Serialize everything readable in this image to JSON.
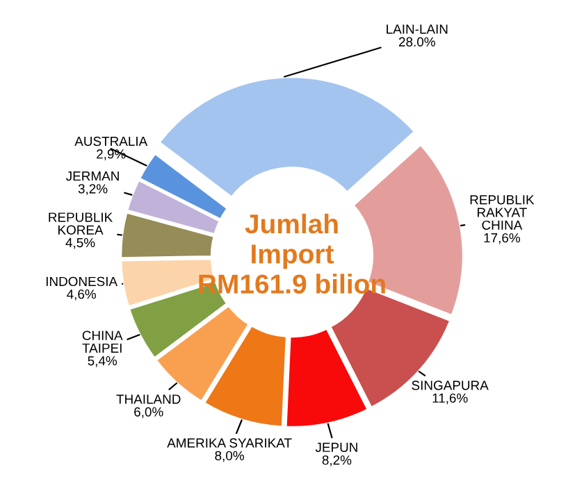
{
  "chart_data": {
    "type": "donut",
    "categories": [
      "LAIN-LAIN",
      "REPUBLIK\nRAKYAT\nCHINA",
      "SINGAPURA",
      "JEPUN",
      "AMERIKA SYARIKAT",
      "THAILAND",
      "CHINA\nTAIPEI",
      "INDONESIA",
      "REPUBLIK\nKOREA",
      "JERMAN",
      "AUSTRALIA"
    ],
    "values": [
      28.0,
      17.6,
      11.6,
      8.2,
      8.0,
      6.0,
      5.4,
      4.6,
      4.5,
      3.2,
      2.9
    ],
    "value_labels": [
      "28.0%",
      "17,6%",
      "11,6%",
      "8,2%",
      "8,0%",
      "6,0%",
      "5,4%",
      "4,6%",
      "4,5%",
      "3,2%",
      "2,9%"
    ],
    "colors": [
      "#a3c4ee",
      "#e39e9c",
      "#c9504e",
      "#f90a0a",
      "#ee7716",
      "#f9a050",
      "#80a043",
      "#fcd4a9",
      "#958c57",
      "#c1b2d9",
      "#5a93dd"
    ],
    "annotations": [
      "Jumlah\nImport\nRM161.9 bilion"
    ],
    "legend": false
  }
}
